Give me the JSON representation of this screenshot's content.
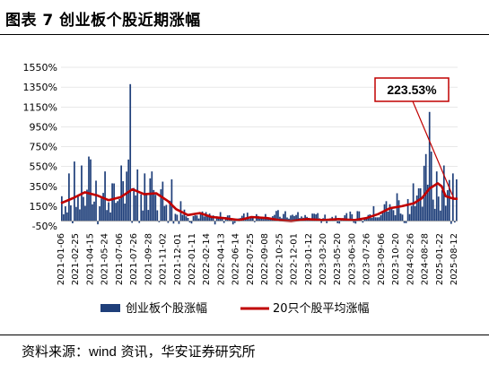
{
  "figure_title": "图表 7 创业板个股近期涨幅",
  "source_prefix": "资料来源：",
  "source_name": "wind",
  "source_rest": " 资讯，华安证券研究所",
  "colors": {
    "bars": "#1f3f7a",
    "line": "#c00000",
    "grid": "#d0d0d0"
  },
  "chart_data": {
    "type": "bar",
    "title": "",
    "xlabel": "",
    "ylabel": "",
    "ylim": [
      -50,
      1550
    ],
    "ytick_values": [
      -50,
      150,
      350,
      550,
      750,
      950,
      1150,
      1350,
      1550
    ],
    "ytick_labels": [
      "-50%",
      "150%",
      "350%",
      "550%",
      "750%",
      "950%",
      "1150%",
      "1350%",
      "1550%"
    ],
    "xtick_labels": [
      "2021-01-06",
      "2021-02-25",
      "2021-04-15",
      "2021-05-24",
      "2021-07-06",
      "2021-07-26",
      "2021-09-28",
      "2021-11-02",
      "2021-12-01",
      "2022-01-11",
      "2022-02-14",
      "2022-04-13",
      "2022-06-14",
      "2022-07-25",
      "2022-09-08",
      "2022-10-25",
      "2022-12-01",
      "2023-01-12",
      "2023-03-20",
      "2023-05-20",
      "2023-06-30",
      "2023-07-26",
      "2023-09-06",
      "2023-10-20",
      "2024-02-26",
      "2024-08-28",
      "2025-01-22",
      "2025-08-12"
    ],
    "legend": [
      "创业板个股涨幅",
      "20只个股平均涨幅"
    ],
    "legend_position": "bottom",
    "grid": false,
    "annotation": {
      "text": "223.53%",
      "target": "last value of 20只个股平均涨幅"
    },
    "series": [
      {
        "name": "创业板个股涨幅",
        "type": "bar",
        "peaks": [
          {
            "x": 0.0,
            "y": 250
          },
          {
            "x": 0.02,
            "y": 480
          },
          {
            "x": 0.03,
            "y": 600
          },
          {
            "x": 0.05,
            "y": 560
          },
          {
            "x": 0.07,
            "y": 650
          },
          {
            "x": 0.09,
            "y": 540
          },
          {
            "x": 0.11,
            "y": 500
          },
          {
            "x": 0.13,
            "y": 380
          },
          {
            "x": 0.15,
            "y": 560
          },
          {
            "x": 0.17,
            "y": 620
          },
          {
            "x": 0.175,
            "y": 1380
          },
          {
            "x": 0.19,
            "y": 520
          },
          {
            "x": 0.21,
            "y": 480
          },
          {
            "x": 0.23,
            "y": 500
          },
          {
            "x": 0.25,
            "y": 320
          },
          {
            "x": 0.27,
            "y": 950
          },
          {
            "x": 0.28,
            "y": 420
          },
          {
            "x": 0.3,
            "y": 200
          },
          {
            "x": 0.33,
            "y": 120
          },
          {
            "x": 0.4,
            "y": 90
          },
          {
            "x": 0.5,
            "y": 100
          },
          {
            "x": 0.55,
            "y": 110
          },
          {
            "x": 0.6,
            "y": 90
          },
          {
            "x": 0.65,
            "y": 80
          },
          {
            "x": 0.7,
            "y": 90
          },
          {
            "x": 0.75,
            "y": 100
          },
          {
            "x": 0.79,
            "y": 150
          },
          {
            "x": 0.82,
            "y": 200
          },
          {
            "x": 0.85,
            "y": 280
          },
          {
            "x": 0.87,
            "y": 300
          },
          {
            "x": 0.89,
            "y": 380
          },
          {
            "x": 0.91,
            "y": 330
          },
          {
            "x": 0.93,
            "y": 1100
          },
          {
            "x": 0.935,
            "y": 700
          },
          {
            "x": 0.95,
            "y": 500
          },
          {
            "x": 0.97,
            "y": 560
          },
          {
            "x": 0.99,
            "y": 480
          },
          {
            "x": 1.0,
            "y": 420
          }
        ]
      },
      {
        "name": "20只个股平均涨幅",
        "type": "line",
        "points": [
          {
            "x": 0.0,
            "y": 180
          },
          {
            "x": 0.03,
            "y": 230
          },
          {
            "x": 0.06,
            "y": 290
          },
          {
            "x": 0.09,
            "y": 260
          },
          {
            "x": 0.12,
            "y": 210
          },
          {
            "x": 0.15,
            "y": 240
          },
          {
            "x": 0.18,
            "y": 320
          },
          {
            "x": 0.21,
            "y": 270
          },
          {
            "x": 0.24,
            "y": 280
          },
          {
            "x": 0.27,
            "y": 200
          },
          {
            "x": 0.29,
            "y": 120
          },
          {
            "x": 0.32,
            "y": 60
          },
          {
            "x": 0.35,
            "y": 80
          },
          {
            "x": 0.38,
            "y": 40
          },
          {
            "x": 0.41,
            "y": 30
          },
          {
            "x": 0.45,
            "y": 10
          },
          {
            "x": 0.48,
            "y": 40
          },
          {
            "x": 0.52,
            "y": 30
          },
          {
            "x": 0.55,
            "y": 10
          },
          {
            "x": 0.58,
            "y": 0
          },
          {
            "x": 0.62,
            "y": 20
          },
          {
            "x": 0.66,
            "y": 10
          },
          {
            "x": 0.7,
            "y": 20
          },
          {
            "x": 0.74,
            "y": 10
          },
          {
            "x": 0.77,
            "y": 30
          },
          {
            "x": 0.8,
            "y": 70
          },
          {
            "x": 0.83,
            "y": 130
          },
          {
            "x": 0.86,
            "y": 150
          },
          {
            "x": 0.89,
            "y": 180
          },
          {
            "x": 0.91,
            "y": 230
          },
          {
            "x": 0.93,
            "y": 330
          },
          {
            "x": 0.95,
            "y": 380
          },
          {
            "x": 0.96,
            "y": 350
          },
          {
            "x": 0.97,
            "y": 250
          },
          {
            "x": 0.99,
            "y": 225
          },
          {
            "x": 1.0,
            "y": 223.53
          }
        ]
      }
    ]
  }
}
